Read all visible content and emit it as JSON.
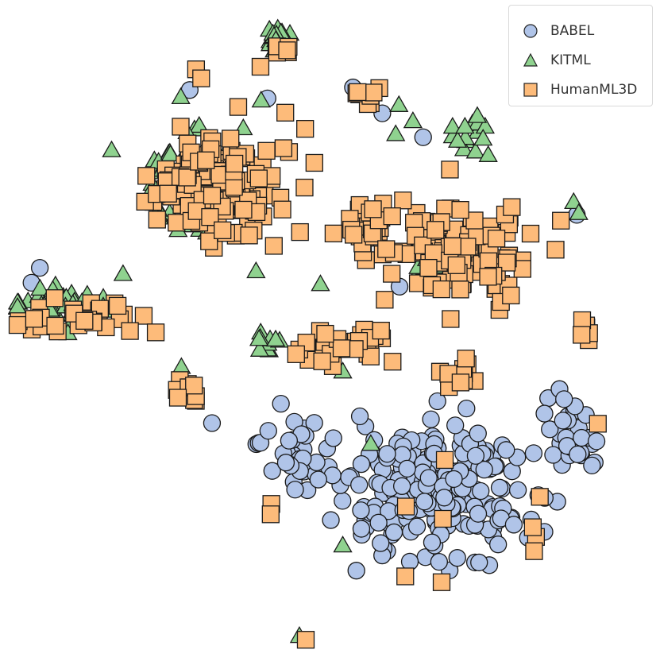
{
  "chart_data": {
    "type": "scatter",
    "title": "",
    "xlabel": "",
    "ylabel": "",
    "grid": false,
    "legend_position": "top-right",
    "xlim": [
      0,
      100
    ],
    "ylim": [
      0,
      100
    ],
    "series": [
      {
        "name": "BABEL",
        "marker": "circle",
        "color": "#b0c4e8",
        "clusters": [
          {
            "cx": 67,
            "cy": 25,
            "sx": 13,
            "sy": 10,
            "n": 230
          },
          {
            "cx": 88,
            "cy": 33,
            "sx": 4,
            "sy": 5,
            "n": 30
          },
          {
            "cx": 45,
            "cy": 31,
            "sx": 5,
            "sy": 5,
            "n": 35
          }
        ],
        "points": [
          [
            4.5,
            60.3
          ],
          [
            3.2,
            58.0
          ],
          [
            28.0,
            87.8
          ],
          [
            40.2,
            86.5
          ],
          [
            53.6,
            88.2
          ],
          [
            64.6,
            80.5
          ],
          [
            88.7,
            68.5
          ],
          [
            60.9,
            57.4
          ],
          [
            42.3,
            39.3
          ],
          [
            31.5,
            36.3
          ],
          [
            88.4,
            38.9
          ],
          [
            86.7,
            40.0
          ],
          [
            58.2,
            84.2
          ]
        ]
      },
      {
        "name": "KITML",
        "marker": "triangle",
        "color": "#8fd28f",
        "clusters": [
          {
            "cx": 28,
            "cy": 74,
            "sx": 7,
            "sy": 7,
            "n": 95
          },
          {
            "cx": 8,
            "cy": 54,
            "sx": 7,
            "sy": 3.5,
            "n": 40
          },
          {
            "cx": 42,
            "cy": 96,
            "sx": 2,
            "sy": 1.5,
            "n": 14
          },
          {
            "cx": 72,
            "cy": 81,
            "sx": 3,
            "sy": 2.5,
            "n": 14
          },
          {
            "cx": 67,
            "cy": 62,
            "sx": 6,
            "sy": 5,
            "n": 25
          },
          {
            "cx": 40,
            "cy": 49,
            "sx": 2,
            "sy": 1.5,
            "n": 10
          }
        ],
        "points": [
          [
            88.2,
            70.5
          ],
          [
            89.0,
            68.8
          ],
          [
            63.0,
            83.0
          ],
          [
            60.3,
            81.0
          ],
          [
            39.2,
            86.2
          ],
          [
            48.5,
            57.8
          ],
          [
            52.0,
            44.3
          ],
          [
            56.4,
            33.1
          ],
          [
            52.0,
            17.4
          ],
          [
            45.2,
            3.4
          ],
          [
            26.7,
            45.0
          ],
          [
            38.4,
            59.8
          ],
          [
            60.8,
            85.5
          ],
          [
            74.0,
            80.3
          ],
          [
            73.1,
            83.8
          ]
        ]
      },
      {
        "name": "HumanML3D",
        "marker": "square",
        "color": "#fdbb7a",
        "clusters": [
          {
            "cx": 32,
            "cy": 73,
            "sx": 9,
            "sy": 7,
            "n": 170
          },
          {
            "cx": 70,
            "cy": 62,
            "sx": 9,
            "sy": 6,
            "n": 120
          },
          {
            "cx": 56,
            "cy": 67,
            "sx": 4,
            "sy": 4,
            "n": 35
          },
          {
            "cx": 12,
            "cy": 53,
            "sx": 8,
            "sy": 3,
            "n": 30
          },
          {
            "cx": 28,
            "cy": 41,
            "sx": 2,
            "sy": 2,
            "n": 12
          },
          {
            "cx": 54,
            "cy": 48,
            "sx": 6,
            "sy": 3,
            "n": 30
          },
          {
            "cx": 43,
            "cy": 94,
            "sx": 1.5,
            "sy": 1,
            "n": 6
          },
          {
            "cx": 56,
            "cy": 87,
            "sx": 2,
            "sy": 1.5,
            "n": 8
          },
          {
            "cx": 90,
            "cy": 51,
            "sx": 1,
            "sy": 1.5,
            "n": 6
          },
          {
            "cx": 70,
            "cy": 44,
            "sx": 3,
            "sy": 2,
            "n": 10
          }
        ],
        "points": [
          [
            92.0,
            36.2
          ],
          [
            82.9,
            24.9
          ],
          [
            82.3,
            18.7
          ],
          [
            82.0,
            16.5
          ],
          [
            81.8,
            20.2
          ],
          [
            68.0,
            30.6
          ],
          [
            61.9,
            23.4
          ],
          [
            67.7,
            21.5
          ],
          [
            61.8,
            12.6
          ],
          [
            67.5,
            11.7
          ],
          [
            40.8,
            23.8
          ],
          [
            40.7,
            22.2
          ],
          [
            46.2,
            2.8
          ],
          [
            39.1,
            91.4
          ],
          [
            29.0,
            91.0
          ],
          [
            29.8,
            89.6
          ],
          [
            46.1,
            81.8
          ],
          [
            58.0,
            50.6
          ],
          [
            68.8,
            75.5
          ],
          [
            78.5,
            69.7
          ],
          [
            86.2,
            67.6
          ]
        ]
      }
    ]
  }
}
